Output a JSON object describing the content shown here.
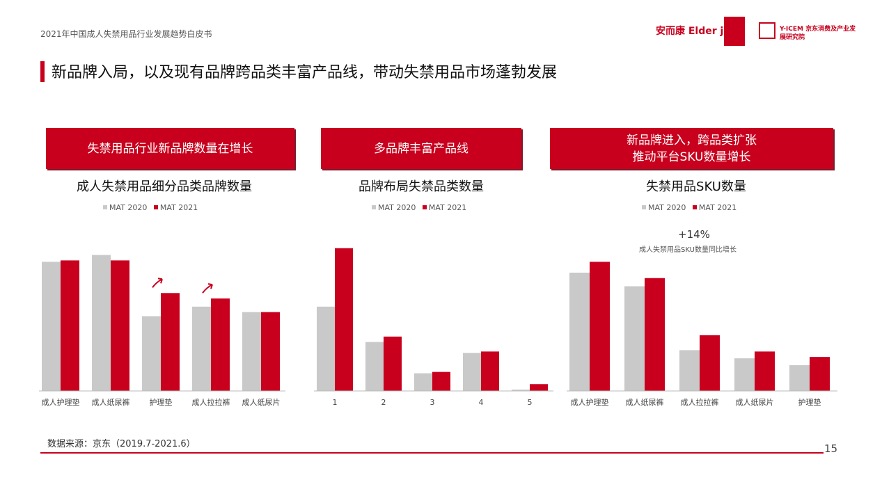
{
  "header": {
    "report_subtitle": "2021年中国成人失禁用品行业发展趋势白皮书",
    "logos": [
      "安而康 Elder joy",
      "Y-ICEM 京东消费及产业发展研究院"
    ]
  },
  "page_title": "新品牌入局，以及现有品牌跨品类丰富产品线，带动失禁用品市场蓬勃发展",
  "colors": {
    "accent": "#c8001e",
    "gray_bar": "#c9c9c9",
    "red_bar": "#c8001e",
    "banner_shadow": "#7a1a2a"
  },
  "panels": [
    {
      "banner": [
        "失禁用品行业新品牌数量在增长"
      ]
    },
    {
      "banner": [
        "多品牌丰富产品线"
      ]
    },
    {
      "banner": [
        "新品牌进入，跨品类扩张",
        "推动平台SKU数量增长"
      ]
    }
  ],
  "annotation": {
    "main": "+14%",
    "sub": "成人失禁用品SKU数量同比增长"
  },
  "footer": {
    "source": "数据来源：京东（2019.7-2021.6）",
    "page_number": "15"
  },
  "chart_data": [
    {
      "type": "bar",
      "title": "成人失禁用品细分品类品牌数量",
      "categories": [
        "成人护理垫",
        "成人纸尿裤",
        "护理垫",
        "成人拉拉裤",
        "成人纸尿片"
      ],
      "series": [
        {
          "name": "MAT 2020",
          "values": [
            95,
            100,
            55,
            62,
            58
          ]
        },
        {
          "name": "MAT 2021",
          "values": [
            96,
            96,
            72,
            68,
            58
          ]
        }
      ],
      "ylim": [
        0,
        110
      ],
      "trend_arrows": [
        2,
        3
      ]
    },
    {
      "type": "bar",
      "title": "品牌布局失禁品类数量",
      "categories": [
        "1",
        "2",
        "3",
        "4",
        "5"
      ],
      "series": [
        {
          "name": "MAT 2020",
          "values": [
            62,
            36,
            13,
            28,
            1
          ]
        },
        {
          "name": "MAT 2021",
          "values": [
            105,
            40,
            14,
            29,
            5
          ]
        }
      ],
      "ylim": [
        0,
        110
      ]
    },
    {
      "type": "bar",
      "title": "失禁用品SKU数量",
      "categories": [
        "成人护理垫",
        "成人纸尿裤",
        "成人拉拉裤",
        "成人纸尿片",
        "护理垫"
      ],
      "series": [
        {
          "name": "MAT 2020",
          "values": [
            87,
            77,
            30,
            24,
            19
          ]
        },
        {
          "name": "MAT 2021",
          "values": [
            95,
            83,
            41,
            29,
            25
          ]
        }
      ],
      "ylim": [
        0,
        110
      ]
    }
  ]
}
